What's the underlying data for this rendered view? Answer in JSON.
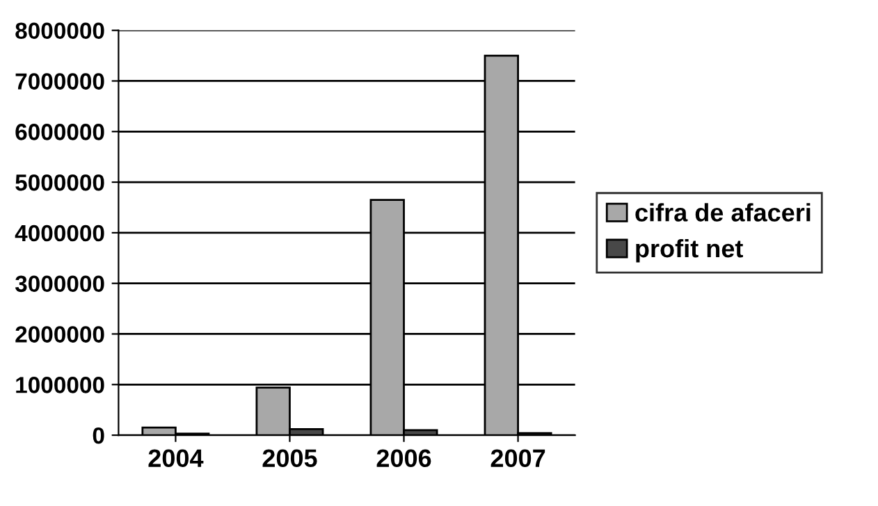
{
  "chart_data": {
    "type": "bar",
    "categories": [
      "2004",
      "2005",
      "2006",
      "2007"
    ],
    "series": [
      {
        "name": "cifra de afaceri",
        "color": "#a8a8a8",
        "values": [
          150000,
          940000,
          4650000,
          7500000
        ]
      },
      {
        "name": "profit net",
        "color": "#484848",
        "values": [
          30000,
          120000,
          100000,
          40000
        ]
      }
    ],
    "ylim": [
      0,
      8000000
    ],
    "yticks": [
      0,
      1000000,
      2000000,
      3000000,
      4000000,
      5000000,
      6000000,
      7000000,
      8000000
    ],
    "grid": "y",
    "legend": "right"
  }
}
